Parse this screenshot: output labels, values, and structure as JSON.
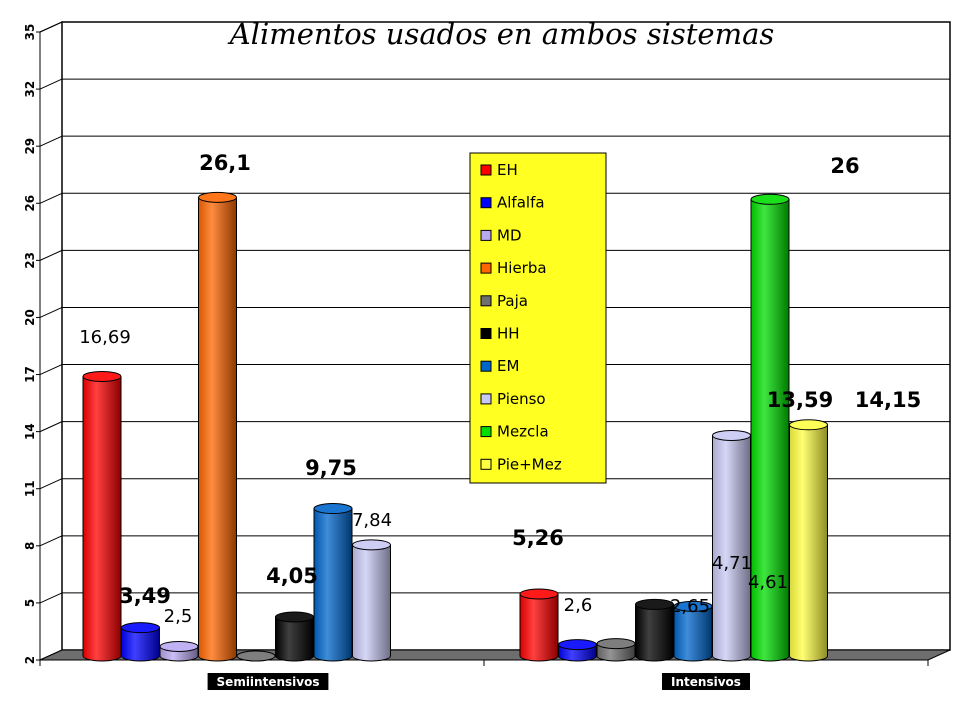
{
  "chart_data": {
    "type": "bar",
    "title": "Alimentos usados en ambos sistemas",
    "categories": [
      "Semiintensivos",
      "Intensivos"
    ],
    "ylim": [
      2,
      35
    ],
    "yticks": [
      "2",
      "5",
      "8",
      "11",
      "14",
      "17",
      "20",
      "23",
      "26",
      "29",
      "32",
      "35"
    ],
    "grid": true,
    "legend_position": "center",
    "series": [
      {
        "name": "EH",
        "color": "#ff0000",
        "values": [
          16.69,
          5.26
        ],
        "labels": [
          "16,69",
          "5,26"
        ],
        "label_bold": [
          false,
          true
        ]
      },
      {
        "name": "Alfalfa",
        "color": "#0000ff",
        "values": [
          3.49,
          2.6
        ],
        "labels": [
          "3,49",
          "2,6"
        ],
        "label_bold": [
          true,
          false
        ]
      },
      {
        "name": "MD",
        "color": "#b8a8f0",
        "values": [
          2.5,
          null
        ],
        "labels": [
          "2,5",
          null
        ],
        "label_bold": [
          false,
          false
        ]
      },
      {
        "name": "Hierba",
        "color": "#ff6600",
        "values": [
          26.1,
          null
        ],
        "labels": [
          "26,1",
          null
        ],
        "label_bold": [
          true,
          false
        ]
      },
      {
        "name": "Paja",
        "color": "#707070",
        "values": [
          2,
          2.65
        ],
        "labels": [
          null,
          "2,65"
        ],
        "label_bold": [
          false,
          false
        ]
      },
      {
        "name": "HH",
        "color": "#000000",
        "values": [
          4.05,
          4.71
        ],
        "labels": [
          "4,05",
          "4,71"
        ],
        "label_bold": [
          true,
          false
        ]
      },
      {
        "name": "EM",
        "color": "#0066cc",
        "values": [
          9.75,
          4.61
        ],
        "labels": [
          "9,75",
          "4,61"
        ],
        "label_bold": [
          true,
          false
        ]
      },
      {
        "name": "Pienso",
        "color": "#c8c8f4",
        "values": [
          7.84,
          13.59
        ],
        "labels": [
          "7,84",
          "13,59"
        ],
        "label_bold": [
          false,
          true
        ]
      },
      {
        "name": "Mezcla",
        "color": "#00dd00",
        "values": [
          null,
          26
        ],
        "labels": [
          null,
          "26"
        ],
        "label_bold": [
          false,
          true
        ]
      },
      {
        "name": "Pie+Mez",
        "color": "#ffff44",
        "values": [
          null,
          14.15
        ],
        "labels": [
          null,
          "14,15"
        ],
        "label_bold": [
          false,
          true
        ]
      }
    ]
  },
  "legend": {
    "background": "#ffff22"
  }
}
